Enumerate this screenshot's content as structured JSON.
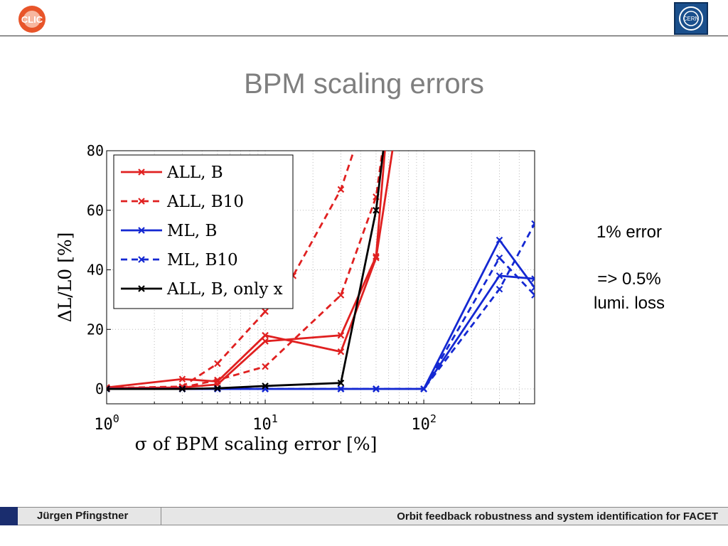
{
  "slide": {
    "title": "BPM scaling errors",
    "note_line1": "1% error",
    "note_line2": "=> 0.5%",
    "note_line3": "lumi. loss"
  },
  "logos": {
    "left_icon": "clic-logo-icon",
    "left_text": "CLIC",
    "right_icon": "cern-logo-icon",
    "right_text": "CERN"
  },
  "footer": {
    "author": "Jürgen Pfingstner",
    "talk_title": "Orbit feedback robustness and system identification for FACET"
  },
  "colors": {
    "red": "#e02020",
    "blue": "#1428d2",
    "black": "#000000",
    "title_gray": "#7f7f7f"
  },
  "chart_data": {
    "type": "line",
    "title": "",
    "xlabel": "σ of BPM scaling error [%]",
    "ylabel": "ΔL/L0 [%]",
    "xscale": "log",
    "xlim": [
      1,
      500
    ],
    "ylim": [
      -5,
      80
    ],
    "xticks": [
      {
        "value": 1,
        "base": "10",
        "exp": "0"
      },
      {
        "value": 10,
        "base": "10",
        "exp": "1"
      },
      {
        "value": 100,
        "base": "10",
        "exp": "2"
      }
    ],
    "yticks": [
      0,
      20,
      40,
      60,
      80
    ],
    "grid": true,
    "legend_position": "top-left",
    "series": [
      {
        "name": "ALL, B",
        "color": "#e02020",
        "dash": "solid",
        "marker": "x",
        "lines": [
          [
            [
              1,
              0.5
            ],
            [
              3,
              3.3
            ],
            [
              5,
              2.5
            ],
            [
              10,
              18
            ],
            [
              30,
              12.5
            ],
            [
              50,
              44
            ],
            [
              70,
              95
            ]
          ],
          [
            [
              1,
              0.3
            ],
            [
              3,
              0.5
            ],
            [
              5,
              1.5
            ],
            [
              10,
              16
            ],
            [
              30,
              18
            ],
            [
              50,
              44.5
            ],
            [
              60,
              95
            ]
          ]
        ]
      },
      {
        "name": "ALL, B10",
        "color": "#e02020",
        "dash": "dashed",
        "marker": "x",
        "lines": [
          [
            [
              1,
              0.3
            ],
            [
              3,
              0.8
            ],
            [
              5,
              8.5
            ],
            [
              10,
              26
            ],
            [
              15,
              38
            ],
            [
              30,
              67
            ],
            [
              45,
              95
            ]
          ],
          [
            [
              1,
              0.2
            ],
            [
              3,
              0.5
            ],
            [
              5,
              3
            ],
            [
              10,
              7.5
            ],
            [
              30,
              31.5
            ],
            [
              50,
              64.5
            ],
            [
              60,
              95
            ]
          ]
        ]
      },
      {
        "name": "ML, B",
        "color": "#1428d2",
        "dash": "solid",
        "marker": "x",
        "lines": [
          [
            [
              1,
              0
            ],
            [
              3,
              0
            ],
            [
              5,
              0
            ],
            [
              10,
              0
            ],
            [
              30,
              0
            ],
            [
              50,
              0
            ],
            [
              100,
              0
            ],
            [
              300,
              50
            ],
            [
              500,
              34
            ]
          ],
          [
            [
              1,
              0
            ],
            [
              3,
              0
            ],
            [
              5,
              0
            ],
            [
              10,
              0
            ],
            [
              30,
              0
            ],
            [
              50,
              0
            ],
            [
              100,
              0
            ],
            [
              300,
              38
            ],
            [
              500,
              37
            ]
          ]
        ]
      },
      {
        "name": "ML, B10",
        "color": "#1428d2",
        "dash": "dashed",
        "marker": "x",
        "lines": [
          [
            [
              1,
              0
            ],
            [
              3,
              0
            ],
            [
              5,
              0
            ],
            [
              10,
              0
            ],
            [
              30,
              0
            ],
            [
              50,
              0
            ],
            [
              100,
              0
            ],
            [
              300,
              33.5
            ],
            [
              500,
              55.5
            ]
          ],
          [
            [
              1,
              0
            ],
            [
              3,
              0
            ],
            [
              5,
              0
            ],
            [
              10,
              0
            ],
            [
              30,
              0
            ],
            [
              50,
              0
            ],
            [
              100,
              0
            ],
            [
              300,
              44
            ],
            [
              500,
              31.5
            ]
          ]
        ]
      },
      {
        "name": "ALL, B, only x",
        "color": "#000000",
        "dash": "solid",
        "marker": "x",
        "lines": [
          [
            [
              1,
              0
            ],
            [
              3,
              0
            ],
            [
              5,
              0.2
            ],
            [
              10,
              1
            ],
            [
              30,
              2
            ],
            [
              50,
              60
            ],
            [
              60,
              95
            ]
          ]
        ]
      }
    ]
  }
}
